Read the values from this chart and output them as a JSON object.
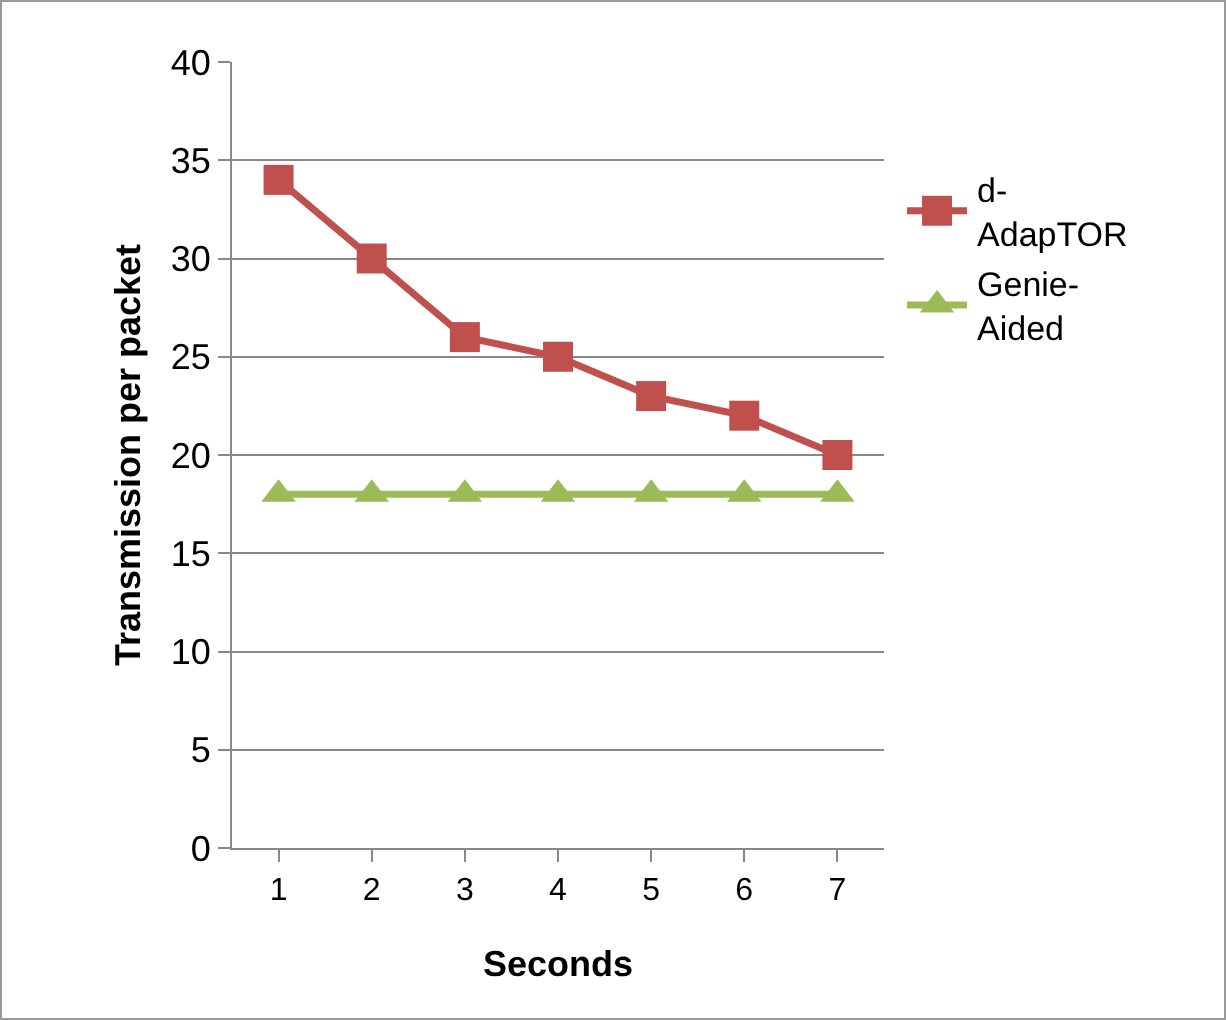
{
  "chart_data": {
    "type": "line",
    "xlabel": "Seconds",
    "ylabel": "Transmission per packet",
    "categories": [
      "1",
      "2",
      "3",
      "4",
      "5",
      "6",
      "7"
    ],
    "series": [
      {
        "name": "d-AdapTOR",
        "color": "#c0504d",
        "marker": "square",
        "values": [
          34,
          30,
          26,
          25,
          23,
          22,
          20
        ]
      },
      {
        "name": "Genie-Aided",
        "color": "#9bbb59",
        "marker": "triangle",
        "values": [
          18,
          18,
          18,
          18,
          18,
          18,
          18
        ]
      }
    ],
    "ylim": [
      0,
      40
    ],
    "yticks": [
      0,
      5,
      10,
      15,
      20,
      25,
      30,
      35,
      40
    ],
    "grid": "y",
    "legend": "right",
    "line_style": "solid"
  }
}
